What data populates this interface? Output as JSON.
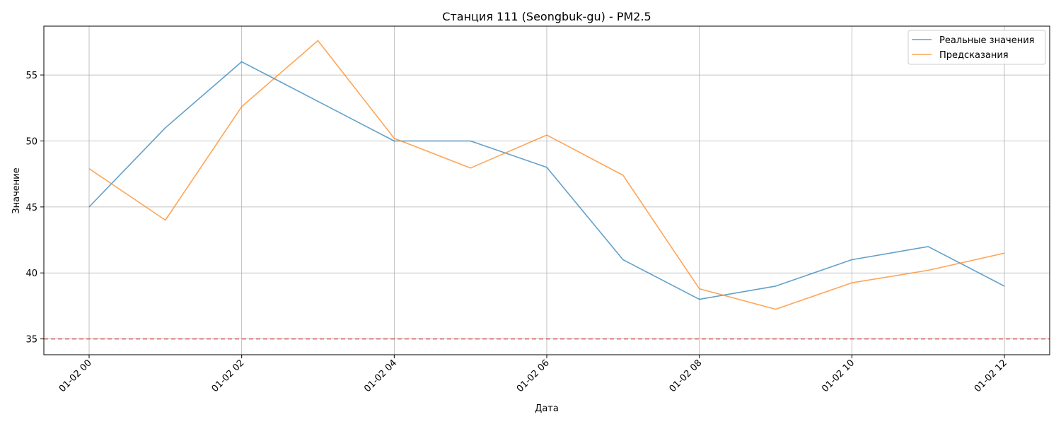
{
  "chart_data": {
    "type": "line",
    "title": "Станция 111 (Seongbuk-gu) - PM2.5",
    "xlabel": "Дата",
    "ylabel": "Значение",
    "x": [
      "01-02 00",
      "01-02 01",
      "01-02 02",
      "01-02 03",
      "01-02 04",
      "01-02 05",
      "01-02 06",
      "01-02 07",
      "01-02 08",
      "01-02 09",
      "01-02 10",
      "01-02 11",
      "01-02 12"
    ],
    "x_ticks": [
      "01-02 00",
      "01-02 02",
      "01-02 04",
      "01-02 06",
      "01-02 08",
      "01-02 10",
      "01-02 12"
    ],
    "y_ticks": [
      35,
      40,
      45,
      50,
      55
    ],
    "ylim": [
      33.8,
      58.7
    ],
    "series": [
      {
        "name": "Реальные значения",
        "color": "#1f77b4",
        "values": [
          45,
          51,
          56,
          53,
          50,
          50,
          48,
          41,
          38,
          39,
          41,
          42,
          39
        ]
      },
      {
        "name": "Предсказания",
        "color": "#ff7f0e",
        "values": [
          47.9,
          44.0,
          52.6,
          57.6,
          50.2,
          47.95,
          50.45,
          47.4,
          38.8,
          37.25,
          39.25,
          40.2,
          41.5
        ]
      }
    ],
    "threshold": {
      "value": 35,
      "color": "#d62728",
      "style": "dashed"
    },
    "grid": true,
    "legend_position": "top-right"
  }
}
